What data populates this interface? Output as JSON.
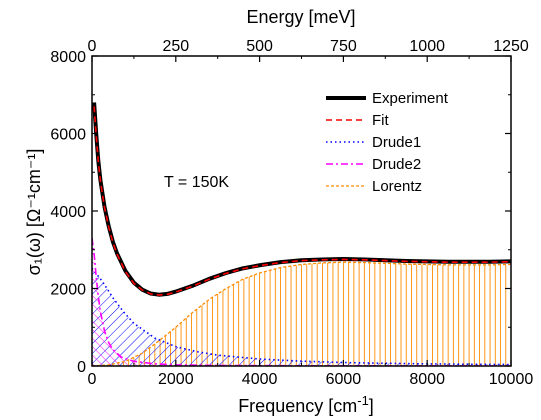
{
  "chart_data": {
    "type": "line",
    "xlabel": "Frequency [cm",
    "xlabel_sup": "-1",
    "xlabel_close": "]",
    "top_xlabel": "Energy [meV]",
    "ylabel": "σ₁(ω) [Ω⁻¹cm⁻¹]",
    "xlim": [
      0,
      10000
    ],
    "ylim": [
      0,
      8000
    ],
    "top_xlim": [
      0,
      1250
    ],
    "xticks": [
      0,
      2000,
      4000,
      6000,
      8000,
      10000
    ],
    "xtick_labels": [
      "0",
      "2000",
      "4000",
      "6000",
      "8000",
      "10000"
    ],
    "yticks": [
      0,
      2000,
      4000,
      6000,
      8000
    ],
    "ytick_labels": [
      "0",
      "2000",
      "4000",
      "6000",
      "8000"
    ],
    "top_xticks": [
      0,
      250,
      500,
      750,
      1000,
      1250
    ],
    "top_xtick_labels": [
      "0",
      "250",
      "500",
      "750",
      "1000",
      "1250"
    ],
    "annotation": "T = 150K",
    "legend_position": "top-right",
    "grid": false,
    "series": [
      {
        "name": "Experiment",
        "color": "#000000",
        "style": "solid-thick",
        "x": [
          50,
          100,
          150,
          200,
          300,
          400,
          500,
          600,
          800,
          1000,
          1200,
          1400,
          1600,
          1800,
          2000,
          2400,
          2800,
          3200,
          3600,
          4000,
          4500,
          5000,
          5500,
          6000,
          6500,
          7000,
          7500,
          8000,
          8500,
          9000,
          9500,
          10000
        ],
        "y": [
          6800,
          6000,
          5300,
          4800,
          4100,
          3600,
          3200,
          2900,
          2450,
          2150,
          1970,
          1870,
          1840,
          1860,
          1920,
          2070,
          2250,
          2400,
          2520,
          2600,
          2680,
          2730,
          2750,
          2760,
          2750,
          2730,
          2710,
          2700,
          2690,
          2690,
          2690,
          2700
        ]
      },
      {
        "name": "Fit",
        "color": "#ff0000",
        "style": "dashed",
        "x": [
          50,
          100,
          150,
          200,
          300,
          400,
          500,
          600,
          800,
          1000,
          1200,
          1400,
          1600,
          1800,
          2000,
          2400,
          2800,
          3200,
          3600,
          4000,
          4500,
          5000,
          5500,
          6000,
          6500,
          7000,
          7500,
          8000,
          8500,
          9000,
          9500,
          10000
        ],
        "y": [
          6700,
          5950,
          5280,
          4780,
          4080,
          3580,
          3180,
          2880,
          2430,
          2130,
          1960,
          1860,
          1830,
          1850,
          1910,
          2060,
          2240,
          2390,
          2510,
          2590,
          2670,
          2720,
          2740,
          2750,
          2740,
          2720,
          2700,
          2690,
          2680,
          2680,
          2680,
          2690
        ]
      },
      {
        "name": "Drude1",
        "color": "#0000ff",
        "style": "dotted",
        "x": [
          0,
          250,
          500,
          750,
          1000,
          1500,
          2000,
          2500,
          3000,
          4000,
          5000,
          6000,
          7000,
          8000,
          9000,
          10000
        ],
        "y": [
          2520,
          2180,
          1760,
          1400,
          1100,
          720,
          500,
          370,
          280,
          180,
          125,
          90,
          70,
          55,
          45,
          38
        ]
      },
      {
        "name": "Drude2",
        "color": "#ff00ff",
        "style": "dashdot",
        "x": [
          0,
          50,
          100,
          150,
          200,
          300,
          400,
          500,
          700,
          1000,
          1500,
          2000,
          3000,
          5000,
          10000
        ],
        "y": [
          3300,
          2900,
          2300,
          1800,
          1400,
          900,
          600,
          420,
          230,
          120,
          55,
          30,
          14,
          5,
          1
        ]
      },
      {
        "name": "Lorentz",
        "color": "#ff8c00",
        "style": "short-dash",
        "x": [
          0,
          400,
          800,
          1200,
          1600,
          2000,
          2400,
          2800,
          3200,
          3600,
          4000,
          4500,
          5000,
          5500,
          6000,
          6500,
          7000,
          7500,
          8000,
          8500,
          9000,
          9500,
          10000
        ],
        "y": [
          0,
          30,
          120,
          330,
          650,
          1000,
          1380,
          1720,
          2000,
          2240,
          2400,
          2540,
          2620,
          2660,
          2680,
          2670,
          2650,
          2630,
          2620,
          2610,
          2610,
          2610,
          2620
        ]
      }
    ]
  }
}
